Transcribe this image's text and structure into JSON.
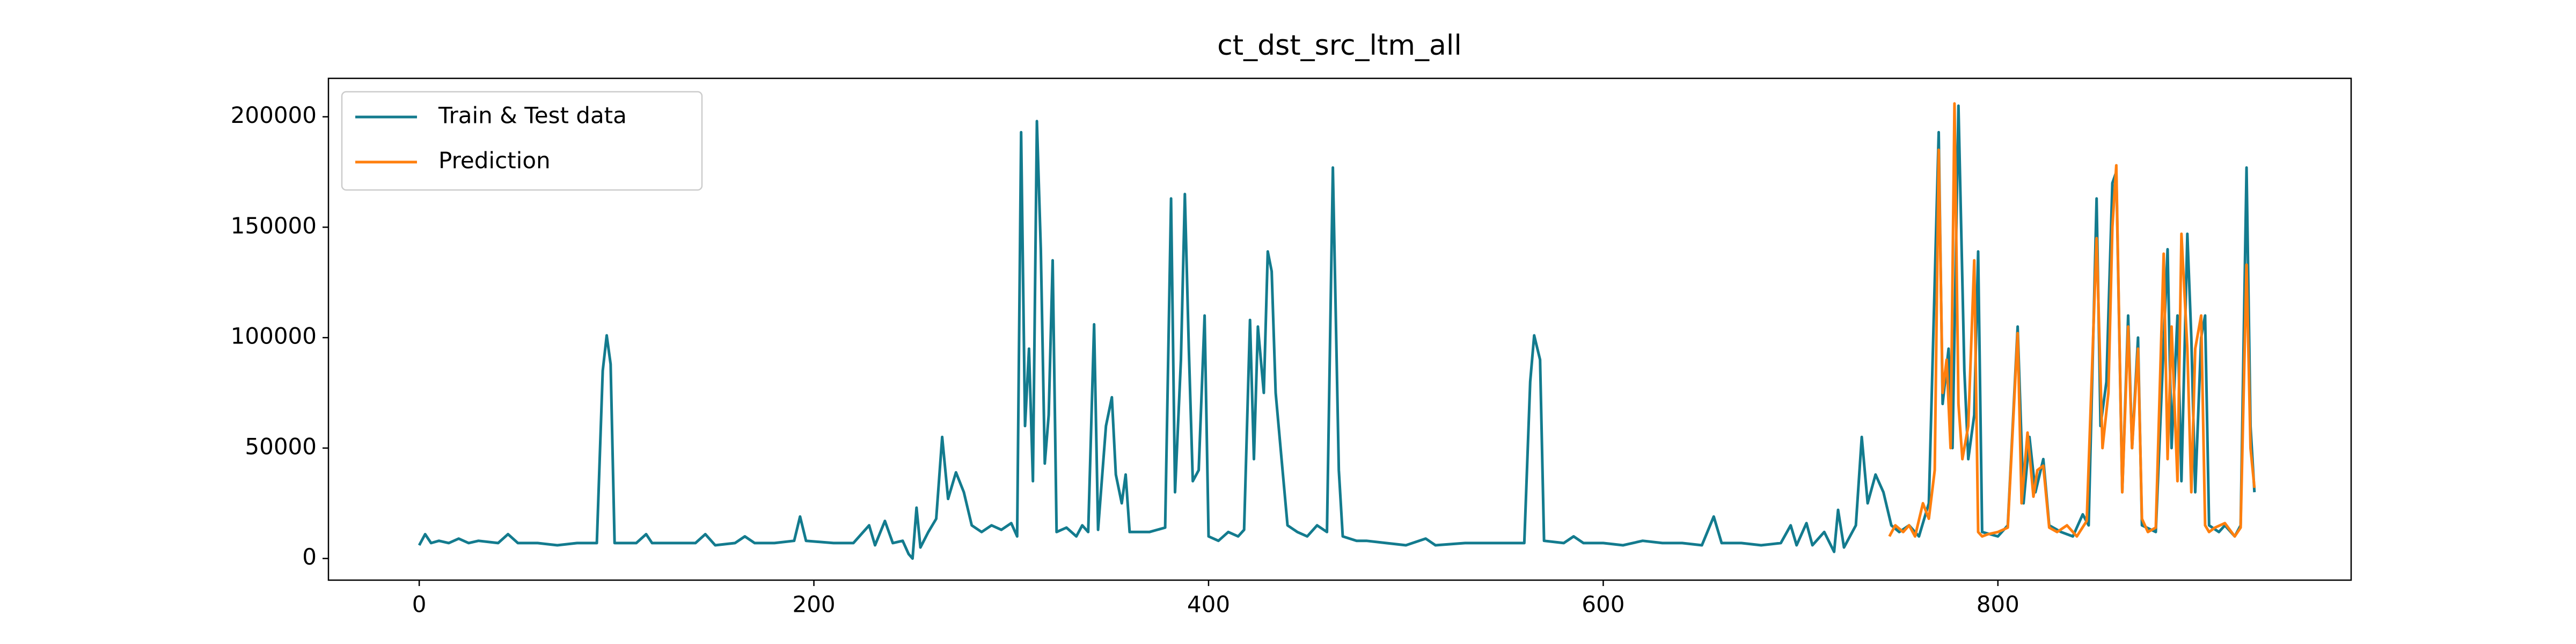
{
  "chart_data": {
    "type": "line",
    "title": "ct_dst_src_ltm_all",
    "xlim": [
      -46,
      979
    ],
    "xticks": [
      0,
      200,
      400,
      600,
      800
    ],
    "ylim": [
      -9800,
      217400
    ],
    "yticks": [
      0,
      50000,
      100000,
      150000,
      200000
    ],
    "legend": "upper left",
    "series": [
      {
        "name": "Train & Test data",
        "color": "#137b8e",
        "x": [
          0,
          3,
          6,
          10,
          15,
          20,
          25,
          30,
          40,
          45,
          50,
          60,
          70,
          80,
          90,
          93,
          95,
          97,
          99,
          110,
          115,
          118,
          130,
          140,
          145,
          150,
          160,
          165,
          170,
          180,
          190,
          193,
          196,
          210,
          220,
          228,
          231,
          236,
          240,
          245,
          248,
          250,
          252,
          254,
          258,
          262,
          265,
          268,
          272,
          276,
          280,
          285,
          290,
          295,
          300,
          303,
          305,
          307,
          309,
          311,
          313,
          315,
          317,
          319,
          321,
          323,
          328,
          333,
          336,
          339,
          342,
          344,
          348,
          351,
          353,
          356,
          358,
          360,
          370,
          378,
          381,
          383,
          386,
          388,
          390,
          392,
          395,
          398,
          400,
          405,
          410,
          415,
          418,
          421,
          423,
          425,
          428,
          430,
          432,
          434,
          437,
          440,
          445,
          450,
          455,
          460,
          463,
          466,
          468,
          475,
          480,
          490,
          500,
          510,
          515,
          530,
          545,
          560,
          563,
          565,
          568,
          570,
          580,
          585,
          590,
          600,
          610,
          620,
          630,
          640,
          650,
          656,
          660,
          670,
          680,
          690,
          695,
          698,
          703,
          706,
          712,
          717,
          719,
          722,
          728,
          731,
          734,
          738,
          742,
          746,
          750,
          755,
          760,
          765,
          770,
          772,
          775,
          777,
          780,
          783,
          785,
          788,
          790,
          792,
          800,
          805,
          810,
          813,
          816,
          819,
          823,
          826,
          832,
          838,
          843,
          846,
          850,
          852,
          855,
          858,
          860,
          863,
          866,
          868,
          871,
          873,
          880,
          886,
          888,
          891,
          893,
          896,
          898,
          900,
          903,
          905,
          907,
          912,
          915,
          920,
          923,
          926,
          928,
          930
        ],
        "values": [
          6000,
          11000,
          7000,
          8000,
          7000,
          9000,
          7000,
          8000,
          7000,
          11000,
          7000,
          7000,
          6000,
          7000,
          7000,
          85000,
          101000,
          88000,
          7000,
          7000,
          11000,
          7000,
          7000,
          7000,
          11000,
          6000,
          7000,
          10000,
          7000,
          7000,
          8000,
          19000,
          8000,
          7000,
          7000,
          15000,
          6000,
          17000,
          7000,
          8000,
          2000,
          0,
          23000,
          5000,
          12000,
          18000,
          55000,
          27000,
          39000,
          30000,
          15000,
          12000,
          15000,
          13000,
          16000,
          10000,
          193000,
          60000,
          95000,
          35000,
          198000,
          140000,
          43000,
          65000,
          135000,
          12000,
          14000,
          10000,
          15000,
          12000,
          106000,
          13000,
          60000,
          73000,
          38000,
          25000,
          38000,
          12000,
          12000,
          14000,
          163000,
          30000,
          90000,
          165000,
          95000,
          35000,
          40000,
          110000,
          10000,
          8000,
          12000,
          10000,
          13000,
          108000,
          45000,
          105000,
          75000,
          139000,
          130000,
          75000,
          45000,
          15000,
          12000,
          10000,
          15000,
          12000,
          177000,
          40000,
          10000,
          8000,
          8000,
          7000,
          6000,
          9000,
          6000,
          7000,
          7000,
          7000,
          80000,
          101000,
          90000,
          8000,
          7000,
          10000,
          7000,
          7000,
          6000,
          8000,
          7000,
          7000,
          6000,
          19000,
          7000,
          7000,
          6000,
          7000,
          15000,
          6000,
          16000,
          6000,
          12000,
          3000,
          22000,
          5000,
          15000,
          55000,
          25000,
          38000,
          30000,
          15000,
          12000,
          15000,
          10000,
          25000,
          193000,
          70000,
          95000,
          50000,
          205000,
          85000,
          45000,
          65000,
          139000,
          12000,
          10000,
          15000,
          105000,
          25000,
          55000,
          30000,
          45000,
          15000,
          12000,
          10000,
          20000,
          15000,
          163000,
          60000,
          80000,
          170000,
          175000,
          30000,
          110000,
          50000,
          100000,
          15000,
          12000,
          140000,
          50000,
          110000,
          35000,
          147000,
          100000,
          30000,
          100000,
          110000,
          15000,
          12000,
          15000,
          10000,
          15000,
          177000,
          60000,
          30000
        ]
      },
      {
        "name": "Prediction",
        "color": "#ff7f0e",
        "x": [
          745,
          748,
          752,
          755,
          758,
          762,
          765,
          768,
          770,
          772,
          774,
          776,
          778,
          780,
          782,
          785,
          788,
          790,
          792,
          795,
          800,
          805,
          810,
          812,
          815,
          818,
          820,
          823,
          826,
          830,
          835,
          840,
          845,
          850,
          853,
          856,
          858,
          860,
          863,
          866,
          868,
          871,
          873,
          876,
          880,
          884,
          886,
          888,
          891,
          893,
          896,
          898,
          900,
          903,
          905,
          907,
          910,
          915,
          920,
          923,
          926,
          928,
          930
        ],
        "values": [
          10000,
          15000,
          12000,
          15000,
          10000,
          25000,
          18000,
          40000,
          185000,
          75000,
          90000,
          50000,
          206000,
          70000,
          45000,
          60000,
          135000,
          12000,
          10000,
          11000,
          12000,
          14000,
          102000,
          25000,
          57000,
          28000,
          40000,
          42000,
          14000,
          12000,
          15000,
          10000,
          17000,
          145000,
          50000,
          75000,
          150000,
          178000,
          30000,
          105000,
          50000,
          95000,
          18000,
          12000,
          14000,
          138000,
          45000,
          105000,
          35000,
          147000,
          95000,
          30000,
          95000,
          110000,
          15000,
          12000,
          14000,
          16000,
          10000,
          14000,
          133000,
          50000,
          32000
        ]
      }
    ]
  }
}
